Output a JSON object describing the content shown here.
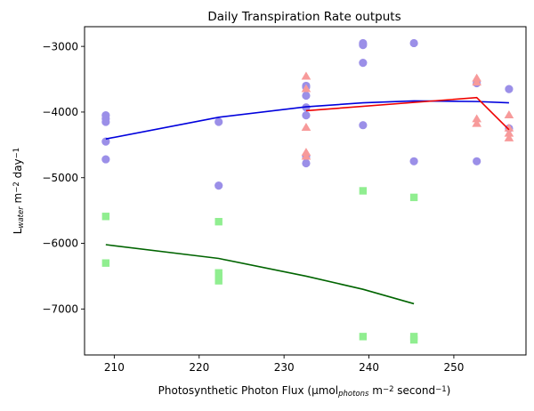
{
  "chart_data": {
    "type": "scatter",
    "title": "Daily Transpiration Rate outputs",
    "xlabel": {
      "parts": [
        {
          "text": "Photosynthetic Photon Flux (μmol",
          "style": "normal"
        },
        {
          "text": "photons",
          "style": "sub"
        },
        {
          "text": " m",
          "style": "normal"
        },
        {
          "text": "−2",
          "style": "sup"
        },
        {
          "text": " second",
          "style": "normal"
        },
        {
          "text": "−1",
          "style": "sup"
        },
        {
          "text": ")",
          "style": "normal"
        }
      ]
    },
    "ylabel": {
      "parts": [
        {
          "text": "L",
          "style": "normal"
        },
        {
          "text": "water",
          "style": "sub"
        },
        {
          "text": " m",
          "style": "normal"
        },
        {
          "text": "−2",
          "style": "sup"
        },
        {
          "text": " day",
          "style": "normal"
        },
        {
          "text": "−1",
          "style": "sup"
        }
      ]
    },
    "xlim": [
      206.5,
      258.5
    ],
    "ylim": [
      -7700,
      -2700
    ],
    "xticks": [
      210,
      220,
      230,
      240,
      250
    ],
    "xtick_labels": [
      "210",
      "220",
      "230",
      "240",
      "250"
    ],
    "yticks": [
      -7000,
      -6000,
      -5000,
      -4000,
      -3000
    ],
    "ytick_labels": [
      "−7000",
      "−6000",
      "−5000",
      "−4000",
      "−3000"
    ],
    "grid": false,
    "colors": {
      "purple_points": "#9b8fe8",
      "red_points": "#f79a9a",
      "green_points": "#90ee90",
      "blue_line": "#0000dd",
      "red_line": "#ee0000",
      "green_line": "#006400"
    },
    "series": [
      {
        "marker": "circle",
        "color_key": "purple_points",
        "points": [
          [
            209,
            -4050
          ],
          [
            209,
            -4100
          ],
          [
            209,
            -4150
          ],
          [
            209,
            -4450
          ],
          [
            209,
            -4720
          ],
          [
            222.3,
            -4150
          ],
          [
            222.3,
            -5120
          ],
          [
            232.6,
            -3600
          ],
          [
            232.6,
            -3620
          ],
          [
            232.6,
            -3750
          ],
          [
            232.6,
            -3930
          ],
          [
            232.6,
            -4050
          ],
          [
            232.6,
            -4680
          ],
          [
            232.6,
            -4780
          ],
          [
            239.3,
            -2950
          ],
          [
            239.3,
            -2980
          ],
          [
            239.3,
            -3250
          ],
          [
            239.3,
            -4200
          ],
          [
            245.3,
            -2950
          ],
          [
            245.3,
            -4750
          ],
          [
            252.7,
            -3560
          ],
          [
            252.7,
            -4750
          ],
          [
            256.5,
            -3650
          ],
          [
            256.5,
            -4250
          ]
        ]
      },
      {
        "marker": "triangle",
        "color_key": "red_points",
        "points": [
          [
            232.6,
            -3460
          ],
          [
            232.6,
            -3650
          ],
          [
            232.6,
            -4240
          ],
          [
            232.6,
            -4620
          ],
          [
            232.6,
            -4680
          ],
          [
            252.7,
            -3490
          ],
          [
            252.7,
            -3550
          ],
          [
            252.7,
            -4110
          ],
          [
            252.7,
            -4180
          ],
          [
            256.5,
            -4050
          ],
          [
            256.5,
            -4250
          ],
          [
            256.5,
            -4330
          ],
          [
            256.5,
            -4400
          ]
        ]
      },
      {
        "marker": "square",
        "color_key": "green_points",
        "points": [
          [
            209,
            -5590
          ],
          [
            209,
            -6300
          ],
          [
            222.3,
            -5670
          ],
          [
            222.3,
            -6450
          ],
          [
            222.3,
            -6500
          ],
          [
            222.3,
            -6570
          ],
          [
            239.3,
            -5200
          ],
          [
            239.3,
            -7420
          ],
          [
            245.3,
            -5300
          ],
          [
            245.3,
            -7420
          ],
          [
            245.3,
            -7470
          ]
        ]
      }
    ],
    "lines": [
      {
        "color_key": "blue_line",
        "points": [
          [
            209,
            -4410
          ],
          [
            222.3,
            -4080
          ],
          [
            232.6,
            -3920
          ],
          [
            239.3,
            -3860
          ],
          [
            245.3,
            -3830
          ],
          [
            252.7,
            -3840
          ],
          [
            256.5,
            -3860
          ]
        ]
      },
      {
        "color_key": "red_line",
        "points": [
          [
            232.6,
            -3980
          ],
          [
            252.7,
            -3780
          ],
          [
            256.5,
            -4270
          ]
        ]
      },
      {
        "color_key": "green_line",
        "points": [
          [
            209,
            -6020
          ],
          [
            222.3,
            -6230
          ],
          [
            232.6,
            -6500
          ],
          [
            239.3,
            -6700
          ],
          [
            245.3,
            -6920
          ]
        ]
      }
    ]
  }
}
